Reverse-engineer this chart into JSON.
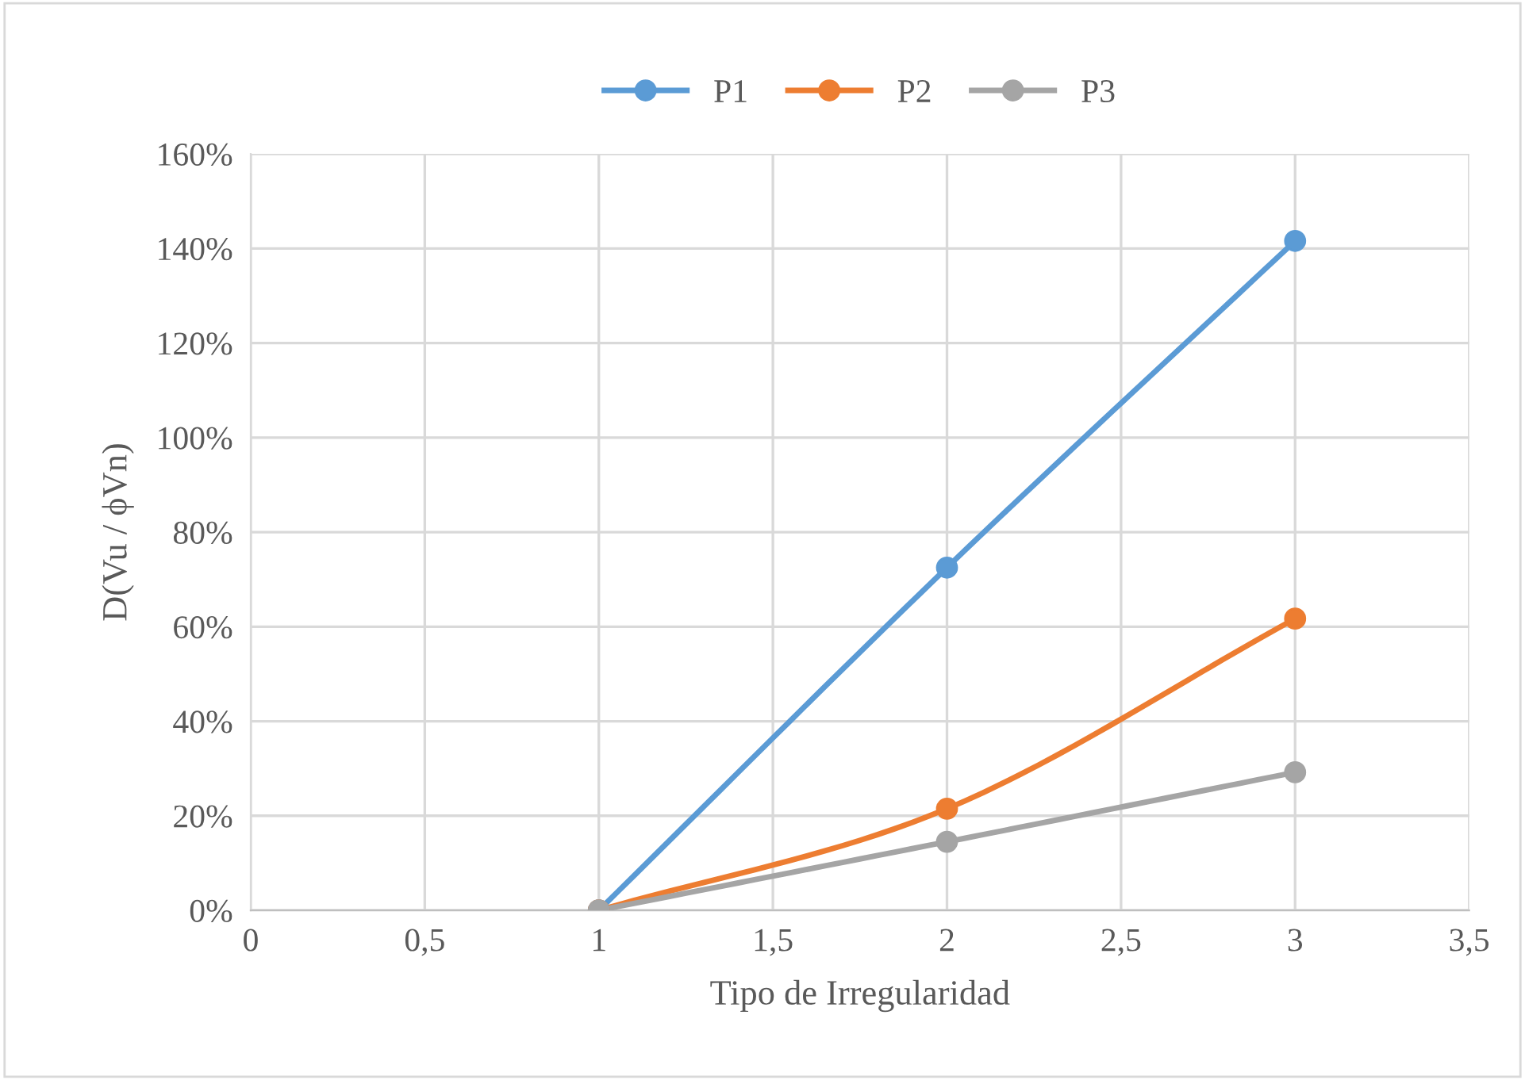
{
  "chart_data": {
    "type": "line",
    "xlabel": "Tipo de Irregularidad",
    "ylabel": "D(Vu / ϕVn)",
    "x": [
      1,
      2,
      3
    ],
    "series": [
      {
        "name": "P1",
        "color": "#5b9bd5",
        "values": [
          0,
          72.5,
          141.6
        ]
      },
      {
        "name": "P2",
        "color": "#ed7d31",
        "values": [
          0,
          21.5,
          61.7
        ]
      },
      {
        "name": "P3",
        "color": "#a5a5a5",
        "values": [
          0,
          14.5,
          29.2
        ]
      }
    ],
    "xlim": [
      0,
      3.5
    ],
    "xticks": [
      0,
      {
        "value": 0.5,
        "label": "0,5"
      },
      1,
      {
        "value": 1.5,
        "label": "1,5"
      },
      2,
      {
        "value": 2.5,
        "label": "2,5"
      },
      3,
      {
        "value": 3.5,
        "label": "3,5"
      }
    ],
    "ylim": [
      0,
      160
    ],
    "yticks": [
      {
        "value": 0,
        "label": "0%"
      },
      {
        "value": 20,
        "label": "20%"
      },
      {
        "value": 40,
        "label": "40%"
      },
      {
        "value": 60,
        "label": "60%"
      },
      {
        "value": 80,
        "label": "80%"
      },
      {
        "value": 100,
        "label": "100%"
      },
      {
        "value": 120,
        "label": "120%"
      },
      {
        "value": 140,
        "label": "140%"
      },
      {
        "value": 160,
        "label": "160%"
      }
    ],
    "grid": true,
    "legend": "top",
    "marker": "circle",
    "line_style": "solid"
  }
}
